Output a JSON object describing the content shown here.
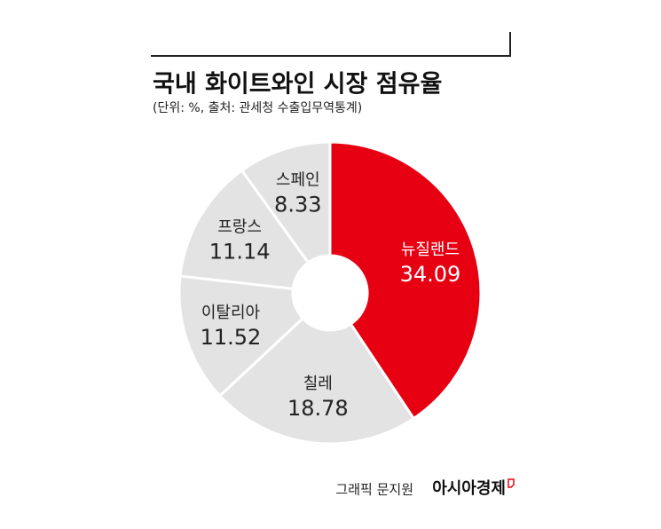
{
  "chart_data": {
    "type": "pie",
    "title": "국내 화이트와인 시장 점유율",
    "subtitle": "(단위: %, 출처: 관세청 수출입무역통계)",
    "categories": [
      "뉴질랜드",
      "칠레",
      "이탈리아",
      "프랑스",
      "스페인"
    ],
    "values": [
      34.09,
      18.78,
      11.52,
      11.14,
      8.33
    ],
    "colors": [
      "#e60012",
      "#e3e3e3",
      "#e3e3e3",
      "#e3e3e3",
      "#e3e3e3"
    ],
    "label_colors": [
      "#ffffff",
      "#222222",
      "#222222",
      "#222222",
      "#222222"
    ],
    "credit": "그래픽 문지원",
    "publisher": "아시아경제"
  }
}
